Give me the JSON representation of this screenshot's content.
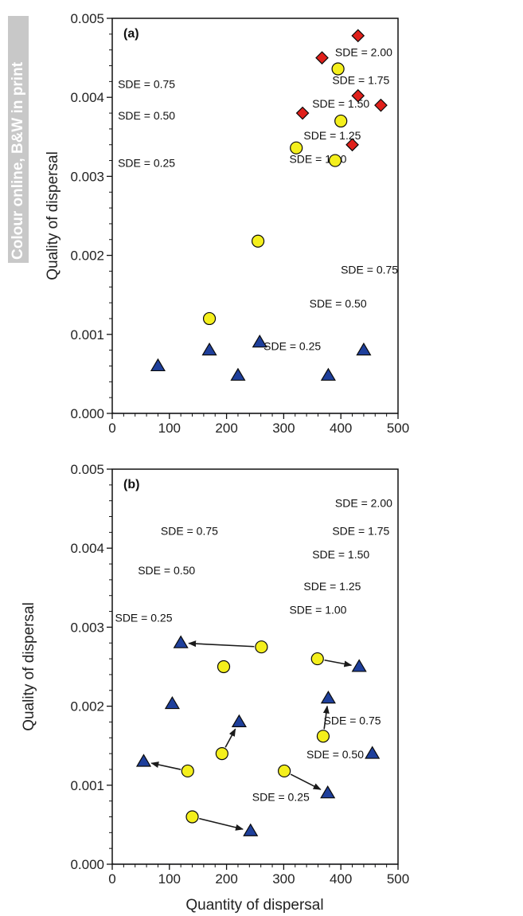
{
  "side_note": "Colour online, B&W in print",
  "colors": {
    "contour_minor": "#a7a7b5",
    "contour_major": "#1a1a1a",
    "triangle": "#1e3f9b",
    "circle": "#f4ef1c",
    "diamond": "#e0201b",
    "side_note_bg": "#c8c8c8"
  },
  "chart_data": [
    {
      "type": "scatter",
      "panel_label": "(a)",
      "xlabel": "",
      "ylabel": "Quality of dispersal",
      "xlim": [
        0,
        500
      ],
      "ylim": [
        0,
        0.005
      ],
      "x_ticks": [
        0,
        100,
        200,
        300,
        400,
        500
      ],
      "y_ticks": [
        0.0,
        0.001,
        0.002,
        0.003,
        0.004,
        0.005
      ],
      "x_tick_labels": [
        "0",
        "100",
        "200",
        "300",
        "400",
        "500"
      ],
      "y_tick_labels": [
        "0.000",
        "0.001",
        "0.002",
        "0.003",
        "0.004",
        "0.005"
      ],
      "grid": false,
      "contour_levels_major": [
        0.25,
        0.5,
        0.75,
        1.0,
        1.25,
        1.5,
        1.75,
        2.0
      ],
      "contour_step_minor": 0.05,
      "sde_labels_left": [
        {
          "text": "SDE = 0.75",
          "x": 60,
          "y": 0.00415
        },
        {
          "text": "SDE = 0.50",
          "x": 60,
          "y": 0.00375
        },
        {
          "text": "SDE = 0.25",
          "x": 60,
          "y": 0.00315
        }
      ],
      "sde_labels_right": [
        {
          "text": "SDE = 2.00",
          "x": 440,
          "y": 0.00455
        },
        {
          "text": "SDE = 1.75",
          "x": 435,
          "y": 0.0042
        },
        {
          "text": "SDE = 1.50",
          "x": 400,
          "y": 0.0039
        },
        {
          "text": "SDE = 1.25",
          "x": 385,
          "y": 0.0035
        },
        {
          "text": "SDE = 1.00",
          "x": 360,
          "y": 0.0032
        },
        {
          "text": "SDE = 0.75",
          "x": 450,
          "y": 0.0018
        },
        {
          "text": "SDE = 0.50",
          "x": 395,
          "y": 0.00137
        },
        {
          "text": "SDE = 0.25",
          "x": 315,
          "y": 0.00083
        }
      ],
      "series": [
        {
          "marker": "triangle",
          "points": [
            [
              80,
              0.0006
            ],
            [
              170,
              0.0008
            ],
            [
              220,
              0.00048
            ],
            [
              258,
              0.0009
            ],
            [
              378,
              0.00048
            ],
            [
              440,
              0.0008
            ]
          ]
        },
        {
          "marker": "circle",
          "points": [
            [
              170,
              0.0012
            ],
            [
              255,
              0.00218
            ],
            [
              322,
              0.00336
            ],
            [
              390,
              0.0032
            ],
            [
              395,
              0.00436
            ],
            [
              400,
              0.0037
            ]
          ]
        },
        {
          "marker": "diamond",
          "points": [
            [
              333,
              0.0038
            ],
            [
              367,
              0.0045
            ],
            [
              420,
              0.0034
            ],
            [
              430,
              0.00478
            ],
            [
              430,
              0.00402
            ],
            [
              470,
              0.0039
            ]
          ]
        }
      ],
      "arrows": []
    },
    {
      "type": "scatter",
      "panel_label": "(b)",
      "xlabel": "Quantity of dispersal",
      "ylabel": "Quality of dispersal",
      "xlim": [
        0,
        500
      ],
      "ylim": [
        0,
        0.005
      ],
      "x_ticks": [
        0,
        100,
        200,
        300,
        400,
        500
      ],
      "y_ticks": [
        0.0,
        0.001,
        0.002,
        0.003,
        0.004,
        0.005
      ],
      "x_tick_labels": [
        "0",
        "100",
        "200",
        "300",
        "400",
        "500"
      ],
      "y_tick_labels": [
        "0.000",
        "0.001",
        "0.002",
        "0.003",
        "0.004",
        "0.005"
      ],
      "grid": false,
      "contour_levels_major": [
        0.25,
        0.5,
        0.75,
        1.0,
        1.25,
        1.5,
        1.75,
        2.0
      ],
      "contour_step_minor": 0.05,
      "sde_labels_left": [
        {
          "text": "SDE = 0.75",
          "x": 135,
          "y": 0.0042
        },
        {
          "text": "SDE = 0.50",
          "x": 95,
          "y": 0.0037
        },
        {
          "text": "SDE = 0.25",
          "x": 55,
          "y": 0.0031
        }
      ],
      "sde_labels_right": [
        {
          "text": "SDE = 2.00",
          "x": 440,
          "y": 0.00455
        },
        {
          "text": "SDE = 1.75",
          "x": 435,
          "y": 0.0042
        },
        {
          "text": "SDE = 1.50",
          "x": 400,
          "y": 0.0039
        },
        {
          "text": "SDE = 1.25",
          "x": 385,
          "y": 0.0035
        },
        {
          "text": "SDE = 1.00",
          "x": 360,
          "y": 0.0032
        },
        {
          "text": "SDE = 0.75",
          "x": 420,
          "y": 0.0018
        },
        {
          "text": "SDE = 0.50",
          "x": 390,
          "y": 0.00137
        },
        {
          "text": "SDE = 0.25",
          "x": 295,
          "y": 0.00083
        }
      ],
      "series": [
        {
          "marker": "triangle",
          "points": [
            [
              55,
              0.0013
            ],
            [
              105,
              0.00203
            ],
            [
              120,
              0.0028
            ],
            [
              222,
              0.0018
            ],
            [
              242,
              0.00042
            ],
            [
              377,
              0.0009
            ],
            [
              378,
              0.0021
            ],
            [
              432,
              0.0025
            ],
            [
              455,
              0.0014
            ]
          ]
        },
        {
          "marker": "circle",
          "points": [
            [
              132,
              0.00118
            ],
            [
              140,
              0.0006
            ],
            [
              192,
              0.0014
            ],
            [
              195,
              0.0025
            ],
            [
              261,
              0.00275
            ],
            [
              301,
              0.00118
            ],
            [
              359,
              0.0026
            ],
            [
              369,
              0.00162
            ]
          ]
        }
      ],
      "arrows": [
        {
          "from": [
            261,
            0.00275
          ],
          "to": [
            120,
            0.0028
          ]
        },
        {
          "from": [
            132,
            0.00118
          ],
          "to": [
            55,
            0.0013
          ]
        },
        {
          "from": [
            140,
            0.0006
          ],
          "to": [
            242,
            0.00042
          ]
        },
        {
          "from": [
            192,
            0.0014
          ],
          "to": [
            222,
            0.0018
          ]
        },
        {
          "from": [
            301,
            0.00118
          ],
          "to": [
            377,
            0.0009
          ]
        },
        {
          "from": [
            359,
            0.0026
          ],
          "to": [
            432,
            0.0025
          ]
        },
        {
          "from": [
            369,
            0.00162
          ],
          "to": [
            378,
            0.0021
          ]
        }
      ]
    }
  ]
}
